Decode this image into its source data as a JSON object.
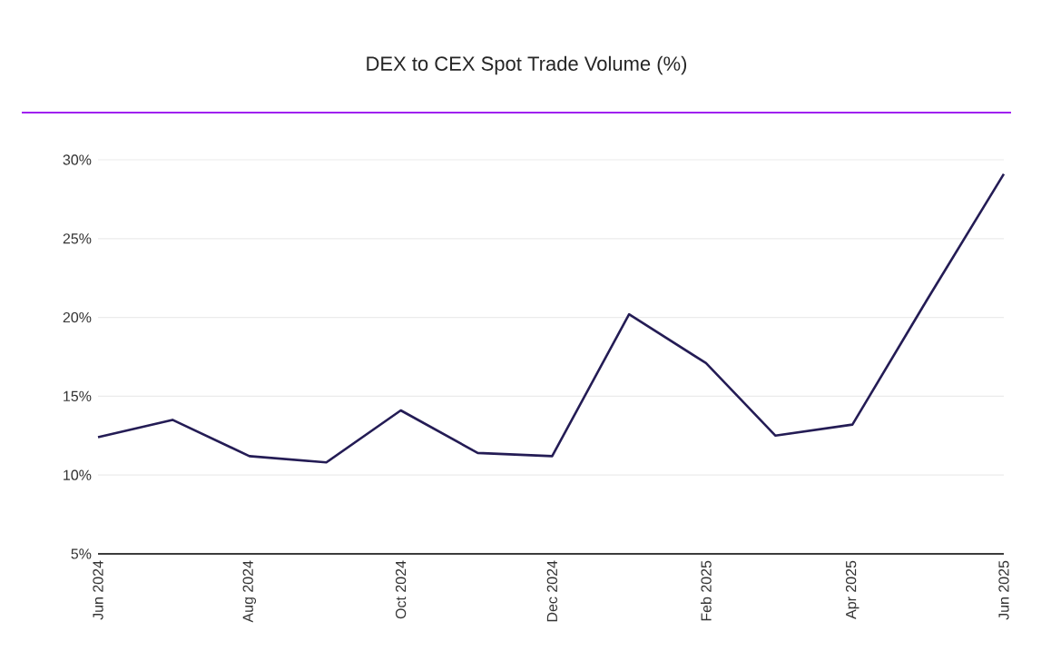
{
  "chart_data": {
    "type": "line",
    "title": "DEX to CEX Spot Trade Volume (%)",
    "x": [
      "2024-06",
      "2024-07",
      "2024-08",
      "2024-09",
      "2024-10",
      "2024-11",
      "2024-12",
      "2025-01",
      "2025-02",
      "2025-03",
      "2025-04",
      "2025-05",
      "2025-06"
    ],
    "series": [
      {
        "color": "#241c55",
        "values": [
          12.4,
          13.5,
          11.2,
          10.8,
          14.1,
          11.4,
          11.2,
          20.2,
          17.1,
          12.5,
          13.2,
          21.1,
          29.1
        ]
      }
    ],
    "xlim": [
      "2024-06",
      "2025-06"
    ],
    "xticks": [
      {
        "value": "2024-06",
        "label": "Jun 2024"
      },
      {
        "value": "2024-08",
        "label": "Aug 2024"
      },
      {
        "value": "2024-10",
        "label": "Oct 2024"
      },
      {
        "value": "2024-12",
        "label": "Dec 2024"
      },
      {
        "value": "2025-02",
        "label": "Feb 2025"
      },
      {
        "value": "2025-04",
        "label": "Apr 2025"
      },
      {
        "value": "2025-06",
        "label": "Jun 2025"
      }
    ],
    "ylim": [
      5,
      30
    ],
    "yticks": [
      {
        "value": 5,
        "label": "5%"
      },
      {
        "value": 10,
        "label": "10%"
      },
      {
        "value": 15,
        "label": "15%"
      },
      {
        "value": 20,
        "label": "20%"
      },
      {
        "value": 25,
        "label": "25%"
      },
      {
        "value": 30,
        "label": "30%"
      }
    ],
    "grid": "y",
    "marker": "none",
    "line_style": "solid"
  }
}
